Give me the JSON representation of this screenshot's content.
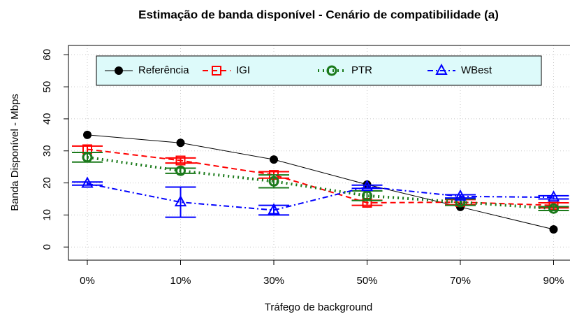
{
  "chart_data": {
    "type": "line",
    "title": "Estimação de banda disponível - Cenário de compatibilidade (a)",
    "x_label": "Tráfego de background",
    "y_label": "Banda Disponível - Mbps",
    "categories": [
      "0%",
      "10%",
      "30%",
      "50%",
      "70%",
      "90%"
    ],
    "ylim": [
      -4.1,
      62.9
    ],
    "yticks": [
      0,
      10,
      20,
      30,
      40,
      50,
      60
    ],
    "grid": true,
    "legend": "top",
    "series": [
      {
        "name": "Referência",
        "color": "#000000",
        "values": [
          35,
          32.5,
          27.3,
          19.5,
          12.5,
          5.5
        ]
      },
      {
        "name": "IGI",
        "color": "#ff0000",
        "values": [
          30.5,
          27,
          22.5,
          13.8,
          14,
          13
        ],
        "errors": [
          1,
          0.8,
          1,
          0.8,
          0.8,
          0.8
        ]
      },
      {
        "name": "PTR",
        "color": "#1b7a1b",
        "values": [
          28,
          23.8,
          20.5,
          16,
          14,
          12
        ],
        "errors": [
          1.5,
          0.8,
          2,
          1.5,
          1,
          0.6
        ]
      },
      {
        "name": "WBest",
        "color": "#0000ff",
        "values": [
          19.8,
          14,
          11.5,
          18.8,
          15.8,
          15.5
        ],
        "errors": [
          0.5,
          4.7,
          1.5,
          0.5,
          0.5,
          0.5
        ]
      }
    ]
  }
}
